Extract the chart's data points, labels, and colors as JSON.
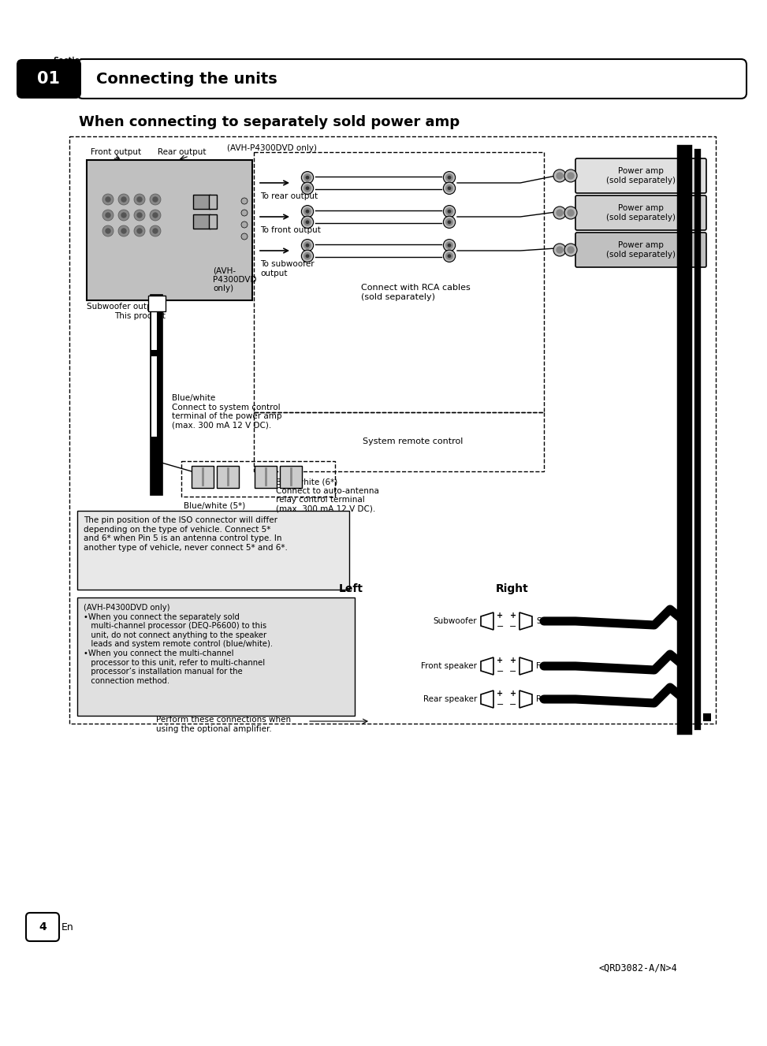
{
  "bg_color": "#ffffff",
  "page_width": 9.54,
  "page_height": 13.07,
  "section_label": "Section",
  "section_number": "01",
  "section_title": "Connecting the units",
  "diagram_title": "When connecting to separately sold power amp",
  "page_number": "4",
  "page_lang": "En",
  "catalog_number": "<QRD3082-A/N>4",
  "labels": {
    "front_output": "Front output",
    "rear_output": "Rear output",
    "avh_only_top": "(AVH-P4300DVD only)",
    "subwoofer_output": "Subwoofer output",
    "this_product": "This product",
    "avh_only_bottom": "(AVH-\nP4300DVD\nonly)",
    "to_rear_output": "To rear output",
    "to_front_output": "To front output",
    "to_subwoofer_output": "To subwoofer\noutput",
    "connect_rca": "Connect with RCA cables\n(sold separately)",
    "power_amp": "Power amp\n(sold separately)",
    "blue_white_text": "Blue/white\nConnect to system control\nterminal of the power amp\n(max. 300 mA 12 V DC).",
    "system_remote": "System remote control",
    "blue_white_5": "Blue/white (5*)",
    "blue_white_6": "Blue/white (6*)\nConnect to auto-antenna\nrelay control terminal\n(max. 300 mA 12 V DC).",
    "iso_note": "The pin position of the ISO connector will differ\ndepending on the type of vehicle. Connect 5*\nand 6* when Pin 5 is an antenna control type. In\nanother type of vehicle, never connect 5* and 6*.",
    "left_label": "Left",
    "right_label": "Right",
    "avh_note_box": "(AVH-P4300DVD only)\n•When you connect the separately sold\n   multi-channel processor (DEQ-P6600) to this\n   unit, do not connect anything to the speaker\n   leads and system remote control (blue/white).\n•When you connect the multi-channel\n   processor to this unit, refer to multi-channel\n   processor’s installation manual for the\n   connection method.",
    "subwoofer_L": "Subwoofer",
    "subwoofer_R": "Subwoofer",
    "front_speaker_L": "Front speaker",
    "front_speaker_R": "Front speaker",
    "rear_speaker_L": "Rear speaker",
    "rear_speaker_R": "Rear speaker",
    "perform_note": "Perform these connections when\nusing the optional amplifier."
  }
}
